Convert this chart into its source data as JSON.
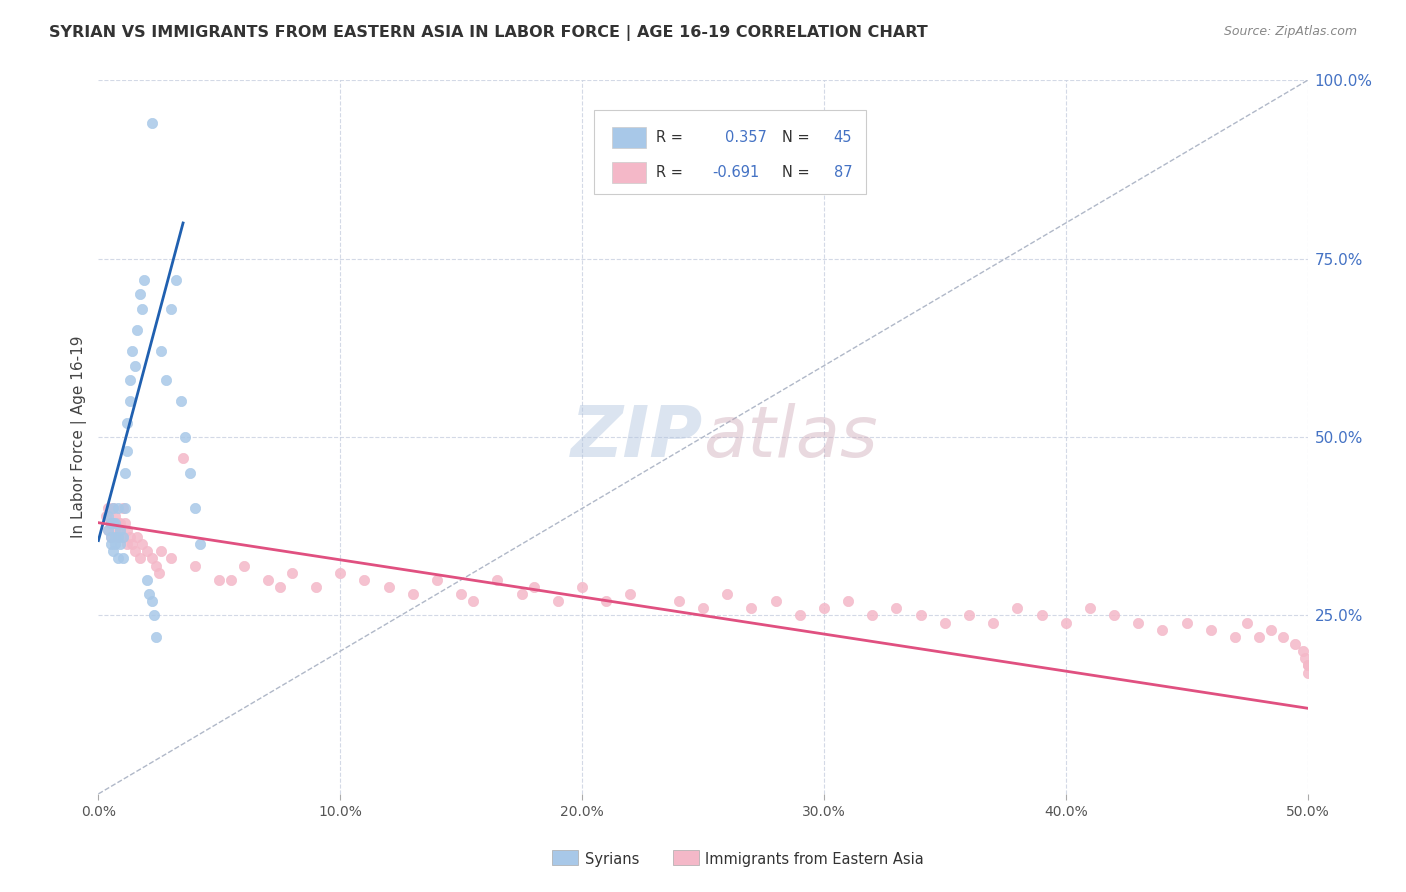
{
  "title": "SYRIAN VS IMMIGRANTS FROM EASTERN ASIA IN LABOR FORCE | AGE 16-19 CORRELATION CHART",
  "source_text": "Source: ZipAtlas.com",
  "ylabel": "In Labor Force | Age 16-19",
  "xlim": [
    0.0,
    0.5
  ],
  "ylim": [
    0.0,
    1.0
  ],
  "legend1_label": "Syrians",
  "legend2_label": "Immigrants from Eastern Asia",
  "R1": 0.357,
  "N1": 45,
  "R2": -0.691,
  "N2": 87,
  "blue_scatter_color": "#a8c8e8",
  "pink_scatter_color": "#f4b8c8",
  "blue_line_color": "#2060b0",
  "pink_line_color": "#e05080",
  "diag_color": "#b0b8c8",
  "watermark_color": "#c8d4e8",
  "background_color": "#ffffff",
  "grid_color": "#c8d0e0",
  "title_color": "#333333",
  "axis_label_color": "#444444",
  "tick_color": "#4472c4",
  "source_color": "#888888",
  "legend_border_color": "#cccccc",
  "syrians_x": [
    0.004,
    0.004,
    0.005,
    0.005,
    0.005,
    0.006,
    0.006,
    0.006,
    0.007,
    0.007,
    0.007,
    0.008,
    0.008,
    0.008,
    0.009,
    0.009,
    0.01,
    0.01,
    0.011,
    0.011,
    0.012,
    0.012,
    0.013,
    0.013,
    0.014,
    0.015,
    0.016,
    0.017,
    0.018,
    0.019,
    0.02,
    0.021,
    0.022,
    0.023,
    0.024,
    0.026,
    0.028,
    0.03,
    0.032,
    0.034,
    0.036,
    0.038,
    0.04,
    0.042,
    0.022
  ],
  "syrians_y": [
    0.37,
    0.39,
    0.35,
    0.38,
    0.36,
    0.34,
    0.38,
    0.4,
    0.36,
    0.35,
    0.38,
    0.33,
    0.36,
    0.4,
    0.35,
    0.37,
    0.33,
    0.36,
    0.4,
    0.45,
    0.52,
    0.48,
    0.55,
    0.58,
    0.62,
    0.6,
    0.65,
    0.7,
    0.68,
    0.72,
    0.3,
    0.28,
    0.27,
    0.25,
    0.22,
    0.62,
    0.58,
    0.68,
    0.72,
    0.55,
    0.5,
    0.45,
    0.4,
    0.35,
    0.94
  ],
  "eastern_asia_x": [
    0.003,
    0.004,
    0.004,
    0.005,
    0.005,
    0.006,
    0.006,
    0.007,
    0.007,
    0.008,
    0.008,
    0.009,
    0.009,
    0.01,
    0.01,
    0.011,
    0.012,
    0.012,
    0.013,
    0.014,
    0.015,
    0.016,
    0.017,
    0.018,
    0.02,
    0.022,
    0.024,
    0.026,
    0.03,
    0.035,
    0.04,
    0.05,
    0.06,
    0.07,
    0.08,
    0.09,
    0.1,
    0.11,
    0.12,
    0.13,
    0.14,
    0.15,
    0.165,
    0.18,
    0.19,
    0.2,
    0.21,
    0.22,
    0.24,
    0.25,
    0.26,
    0.27,
    0.28,
    0.29,
    0.3,
    0.31,
    0.32,
    0.33,
    0.34,
    0.35,
    0.36,
    0.37,
    0.38,
    0.39,
    0.4,
    0.41,
    0.42,
    0.43,
    0.44,
    0.45,
    0.46,
    0.47,
    0.475,
    0.48,
    0.485,
    0.49,
    0.495,
    0.498,
    0.499,
    0.5,
    0.025,
    0.055,
    0.075,
    0.155,
    0.175,
    0.5,
    0.5
  ],
  "eastern_asia_y": [
    0.39,
    0.37,
    0.4,
    0.38,
    0.36,
    0.4,
    0.38,
    0.37,
    0.39,
    0.38,
    0.36,
    0.38,
    0.37,
    0.36,
    0.4,
    0.38,
    0.35,
    0.37,
    0.36,
    0.35,
    0.34,
    0.36,
    0.33,
    0.35,
    0.34,
    0.33,
    0.32,
    0.34,
    0.33,
    0.47,
    0.32,
    0.3,
    0.32,
    0.3,
    0.31,
    0.29,
    0.31,
    0.3,
    0.29,
    0.28,
    0.3,
    0.28,
    0.3,
    0.29,
    0.27,
    0.29,
    0.27,
    0.28,
    0.27,
    0.26,
    0.28,
    0.26,
    0.27,
    0.25,
    0.26,
    0.27,
    0.25,
    0.26,
    0.25,
    0.24,
    0.25,
    0.24,
    0.26,
    0.25,
    0.24,
    0.26,
    0.25,
    0.24,
    0.23,
    0.24,
    0.23,
    0.22,
    0.24,
    0.22,
    0.23,
    0.22,
    0.21,
    0.2,
    0.19,
    0.18,
    0.31,
    0.3,
    0.29,
    0.27,
    0.28,
    0.18,
    0.17
  ]
}
